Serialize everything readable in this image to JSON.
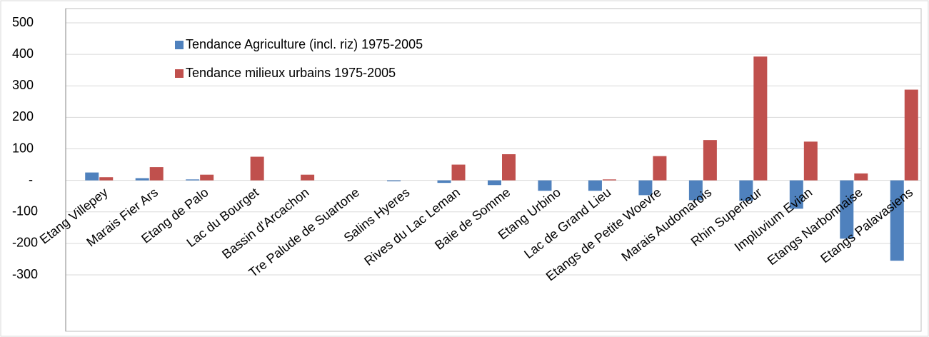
{
  "chart_data": {
    "type": "bar",
    "categories": [
      "Etang Villepey",
      "Marais Fier Ars",
      "Etang de Palo",
      "Lac du Bourget",
      "Bassin d'Arcachon",
      "Tre Palude de Suartone",
      "Salins Hyeres",
      "Rives du Lac Leman",
      "Baie de Somme",
      "Etang Urbino",
      "Lac de Grand Lieu",
      "Etangs de Petite Woevre",
      "Marais Audomarois",
      "Rhin Superieur",
      "Impluvium Evian",
      "Etangs Narbonnaise",
      "Etangs Palavasiens"
    ],
    "series": [
      {
        "name": "Tendance Agriculture (incl. riz) 1975-2005",
        "color": "#4f81bd",
        "values": [
          25,
          7,
          3,
          0,
          0,
          0,
          -3,
          -8,
          -15,
          -33,
          -33,
          -47,
          -63,
          -65,
          -90,
          -185,
          -255
        ]
      },
      {
        "name": "Tendance milieux urbains 1975-2005",
        "color": "#c0504d",
        "values": [
          10,
          42,
          18,
          75,
          18,
          0,
          0,
          50,
          83,
          0,
          3,
          77,
          128,
          393,
          123,
          22,
          288
        ]
      }
    ],
    "ylim": [
      -300,
      500
    ],
    "yticks": [
      -300,
      -200,
      -100,
      {
        "value": 0,
        "label": "-"
      },
      100,
      200,
      300,
      400,
      500
    ],
    "grid": true,
    "legend": "top-left"
  }
}
